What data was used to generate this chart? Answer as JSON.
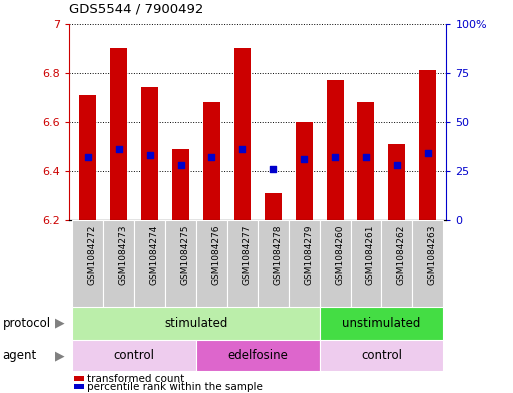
{
  "title": "GDS5544 / 7900492",
  "samples": [
    "GSM1084272",
    "GSM1084273",
    "GSM1084274",
    "GSM1084275",
    "GSM1084276",
    "GSM1084277",
    "GSM1084278",
    "GSM1084279",
    "GSM1084260",
    "GSM1084261",
    "GSM1084262",
    "GSM1084263"
  ],
  "bar_values": [
    6.71,
    6.9,
    6.74,
    6.49,
    6.68,
    6.9,
    6.31,
    6.6,
    6.77,
    6.68,
    6.51,
    6.81
  ],
  "percentile_values_pct": [
    32,
    36,
    33,
    28,
    32,
    36,
    26,
    31,
    32,
    32,
    28,
    34
  ],
  "bar_bottom": 6.2,
  "ylim_left": [
    6.2,
    7.0
  ],
  "ylim_right": [
    0,
    100
  ],
  "yticks_left": [
    6.2,
    6.4,
    6.6,
    6.8,
    7.0
  ],
  "ytick_labels_left": [
    "6.2",
    "6.4",
    "6.6",
    "6.8",
    "7"
  ],
  "yticks_right": [
    0,
    25,
    50,
    75,
    100
  ],
  "ytick_labels_right": [
    "0",
    "25",
    "50",
    "75",
    "100%"
  ],
  "bar_color": "#cc0000",
  "percentile_color": "#0000cc",
  "protocol_groups": [
    {
      "label": "stimulated",
      "start": 0,
      "end": 8,
      "color": "#bbeeaa"
    },
    {
      "label": "unstimulated",
      "start": 8,
      "end": 12,
      "color": "#44dd44"
    }
  ],
  "agent_groups": [
    {
      "label": "control",
      "start": 0,
      "end": 4,
      "color": "#eeccee"
    },
    {
      "label": "edelfosine",
      "start": 4,
      "end": 8,
      "color": "#dd66cc"
    },
    {
      "label": "control",
      "start": 8,
      "end": 12,
      "color": "#eeccee"
    }
  ],
  "legend_items": [
    {
      "label": "transformed count",
      "color": "#cc0000"
    },
    {
      "label": "percentile rank within the sample",
      "color": "#0000cc"
    }
  ],
  "protocol_label": "protocol",
  "agent_label": "agent",
  "left_axis_color": "#cc0000",
  "right_axis_color": "#0000cc",
  "bar_width": 0.55,
  "fig_width": 5.13,
  "fig_height": 3.93,
  "dpi": 100,
  "sample_box_color": "#cccccc",
  "bar_xlim": [
    -0.6,
    11.6
  ]
}
